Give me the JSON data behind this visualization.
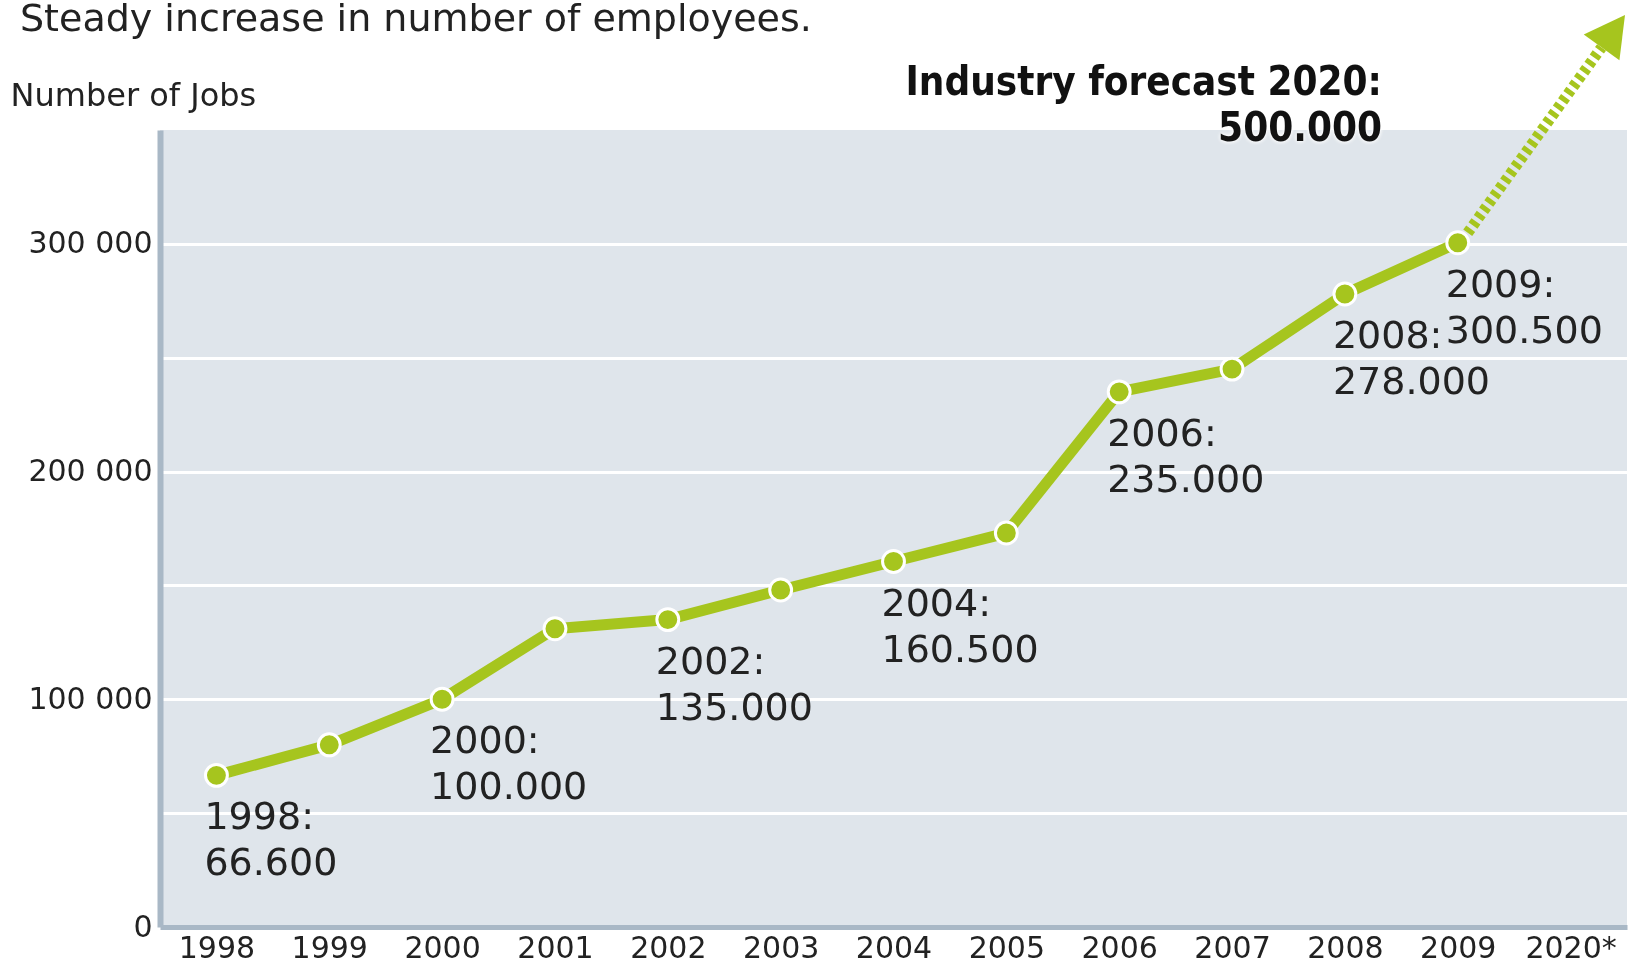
{
  "chart_data": {
    "type": "line",
    "title": "Steady increase in number of employees.",
    "ylabel": "Number of Jobs",
    "categories": [
      "1998",
      "1999",
      "2000",
      "2001",
      "2002",
      "2003",
      "2004",
      "2005",
      "2006",
      "2007",
      "2008",
      "2009",
      "2020*"
    ],
    "series": [
      {
        "color": "#a6c51e",
        "values": [
          66600,
          80000,
          100000,
          131000,
          135000,
          148000,
          160500,
          173000,
          235000,
          245000,
          278000,
          300500,
          null
        ],
        "value_labels": [
          "1998:\n66.600",
          null,
          "2000:\n100.000",
          null,
          "2002:\n135.000",
          null,
          "2004:\n160.500",
          null,
          "2006:\n235.000",
          null,
          "2008:\n278.000",
          "2009:\n300.500",
          null
        ]
      }
    ],
    "ylim": [
      0,
      350000
    ],
    "yticks": [
      0,
      {
        "value": 50000,
        "label": null
      },
      {
        "value": 100000,
        "label": "100 000"
      },
      {
        "value": 150000,
        "label": null
      },
      {
        "value": 200000,
        "label": "200 000"
      },
      {
        "value": 250000,
        "label": null
      },
      {
        "value": 300000,
        "label": "300 000"
      }
    ],
    "grid": "y",
    "marker": "circle",
    "line_style": "solid",
    "annotations": [
      "Industry forecast 2020:\n500.000"
    ]
  }
}
